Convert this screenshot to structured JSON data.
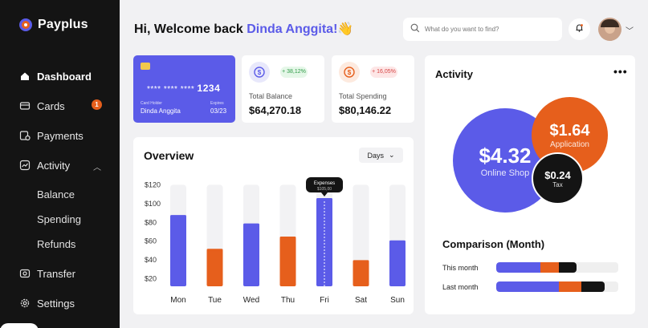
{
  "sidebar": {
    "brand": "Payplus",
    "items": [
      {
        "label": "Dashboard"
      },
      {
        "label": "Cards",
        "badge": "1"
      },
      {
        "label": "Payments"
      },
      {
        "label": "Activity"
      },
      {
        "label": "Balance"
      },
      {
        "label": "Spending"
      },
      {
        "label": "Refunds"
      },
      {
        "label": "Transfer"
      },
      {
        "label": "Settings"
      }
    ]
  },
  "header": {
    "greeting": "Hi, Welcome back",
    "name": "Dinda Anggita!",
    "emoji": "👋",
    "search_placeholder": "What do you want to find?"
  },
  "card": {
    "number_masked": "**** **** ****",
    "number_last": "1234",
    "holder_label": "Card Holder",
    "holder": "Dinda Anggita",
    "expires_label": "Expires",
    "expires": "03/23"
  },
  "stats": [
    {
      "label": "Total Balance",
      "value": "$64,270.18",
      "change": "+ 38,12%"
    },
    {
      "label": "Total Spending",
      "value": "$80,146.22",
      "change": "+ 16,05%"
    }
  ],
  "overview": {
    "title": "Overview",
    "range": "Days",
    "tooltip_label": "Expenses",
    "tooltip_value": "$105,00"
  },
  "chart_data": {
    "type": "bar",
    "categories": [
      "Mon",
      "Tue",
      "Wed",
      "Thu",
      "Fri",
      "Sat",
      "Sun"
    ],
    "values": [
      87,
      51,
      78,
      64,
      105,
      39,
      60
    ],
    "max_values": [
      120,
      120,
      120,
      120,
      120,
      120,
      120
    ],
    "highlight": "Fri",
    "ylim": [
      12,
      128
    ],
    "yticks": [
      "$120",
      "$100",
      "$80",
      "$60",
      "$40",
      "$20"
    ],
    "ytick_values": [
      120,
      100,
      80,
      60,
      40,
      20
    ],
    "colors": [
      "#5b5be8",
      "#e65f1c",
      "#5b5be8",
      "#e65f1c",
      "#5b5be8",
      "#e65f1c",
      "#5b5be8"
    ]
  },
  "activity": {
    "title": "Activity",
    "more": "•••",
    "bubbles": [
      {
        "value": "$4.32",
        "label": "Online Shop"
      },
      {
        "value": "$1.64",
        "label": "Application"
      },
      {
        "value": "$0.24",
        "label": "Tax"
      }
    ],
    "comparison_title": "Comparison (Month)",
    "rows": [
      {
        "label": "This month",
        "segments": [
          0.36,
          0.15,
          0.15
        ]
      },
      {
        "label": "Last month",
        "segments": [
          0.51,
          0.19,
          0.19
        ]
      }
    ]
  },
  "colors": {
    "accent": "#5b5be8",
    "orange": "#e65f1c",
    "dark": "#141414"
  }
}
